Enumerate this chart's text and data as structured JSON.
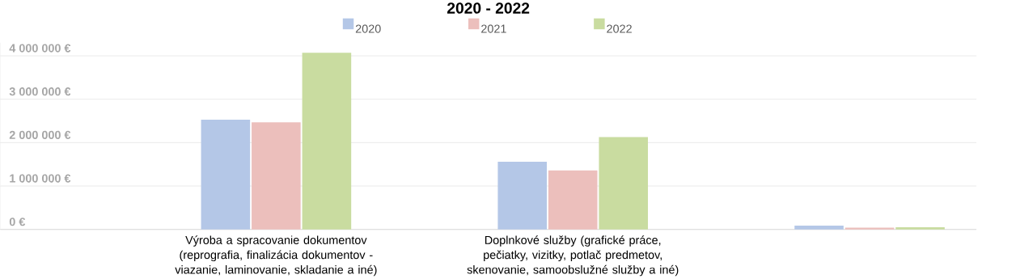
{
  "chart_data": {
    "type": "bar",
    "title": "2020 - 2022",
    "categories": [
      "Výroba a spracovanie dokumentov (reprografia, finalizácia dokumentov - viazanie, laminovanie, skladanie a iné)",
      "Doplnkové služby (grafické práce, pečiatky, vizitky, potlač predmetov, skenovanie, samoobslužné služby a iné)",
      null
    ],
    "series": [
      {
        "name": "2020",
        "color": "#b4c7e7",
        "values": [
          2530000,
          1560000,
          90000
        ]
      },
      {
        "name": "2021",
        "color": "#ecbfbc",
        "values": [
          2470000,
          1360000,
          40000
        ]
      },
      {
        "name": "2022",
        "color": "#c9dca0",
        "values": [
          4070000,
          2130000,
          50000
        ]
      }
    ],
    "ylim": [
      0,
      4300000
    ],
    "yticks": [
      {
        "value": 0,
        "label": "0 €"
      },
      {
        "value": 1000000,
        "label": "1 000 000 €"
      },
      {
        "value": 2000000,
        "label": "2 000 000 €"
      },
      {
        "value": 3000000,
        "label": "3 000 000 €"
      },
      {
        "value": 4000000,
        "label": "4 000 000 €"
      }
    ],
    "grid": "y",
    "legend": "top"
  }
}
